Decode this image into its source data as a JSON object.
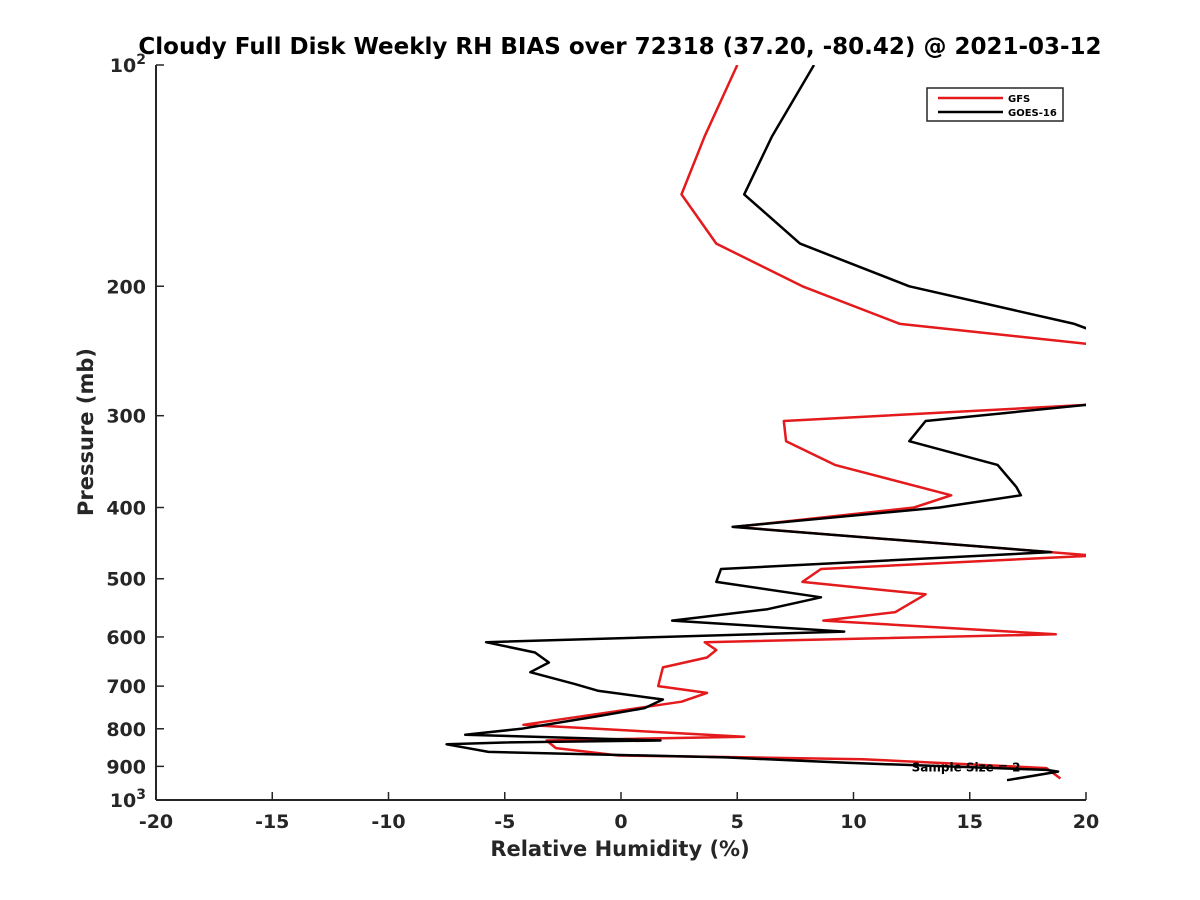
{
  "chart_data": {
    "type": "line",
    "title": "Cloudy Full Disk Weekly RH BIAS over 72318 (37.20, -80.42) @ 2021-03-12",
    "xlabel": "Relative Humidity (%)",
    "ylabel": "Pressure (mb)",
    "xlim": [
      -20,
      20
    ],
    "ylim": [
      100,
      1000
    ],
    "yscale": "log",
    "y_reversed": true,
    "grid": false,
    "legend_position": "top-right",
    "x_ticks": [
      -20,
      -15,
      -10,
      -5,
      0,
      5,
      10,
      15,
      20
    ],
    "x_tick_labels": [
      "-20",
      "-15",
      "-10",
      "-5",
      "0",
      "5",
      "10",
      "15",
      "20"
    ],
    "y_ticks": [
      {
        "value": 100,
        "base": "10",
        "exp": "2"
      },
      {
        "value": 200,
        "label": "200"
      },
      {
        "value": 300,
        "label": "300"
      },
      {
        "value": 400,
        "label": "400"
      },
      {
        "value": 500,
        "label": "500"
      },
      {
        "value": 600,
        "label": "600"
      },
      {
        "value": 700,
        "label": "700"
      },
      {
        "value": 800,
        "label": "800"
      },
      {
        "value": 900,
        "label": "900"
      },
      {
        "value": 1000,
        "base": "10",
        "exp": "3"
      }
    ],
    "annotation": "Sample Size = 2",
    "annotation_position": {
      "x": 12.5,
      "y": 900
    },
    "series": [
      {
        "name": "GFS",
        "color": "#e41a1c",
        "points": [
          [
            5.0,
            100
          ],
          [
            3.6,
            125
          ],
          [
            2.6,
            150
          ],
          [
            4.1,
            175
          ],
          [
            7.8,
            200
          ],
          [
            12.0,
            225
          ],
          [
            20.3,
            240
          ],
          [
            20.3,
            290
          ],
          [
            20.0,
            290
          ],
          [
            7.0,
            305
          ],
          [
            7.1,
            325
          ],
          [
            9.2,
            350
          ],
          [
            14.2,
            385
          ],
          [
            12.6,
            400
          ],
          [
            4.9,
            425
          ],
          [
            20.3,
            465
          ],
          [
            8.6,
            485
          ],
          [
            7.8,
            505
          ],
          [
            13.1,
            525
          ],
          [
            11.8,
            555
          ],
          [
            8.7,
            570
          ],
          [
            18.7,
            595
          ],
          [
            3.6,
            610
          ],
          [
            4.1,
            625
          ],
          [
            3.7,
            640
          ],
          [
            1.8,
            660
          ],
          [
            1.6,
            700
          ],
          [
            3.7,
            715
          ],
          [
            2.6,
            735
          ],
          [
            -4.2,
            790
          ],
          [
            5.3,
            820
          ],
          [
            -3.2,
            830
          ],
          [
            -2.8,
            850
          ],
          [
            -0.1,
            870
          ],
          [
            5.5,
            875
          ],
          [
            10.4,
            880
          ],
          [
            18.3,
            905
          ],
          [
            18.9,
            935
          ]
        ]
      },
      {
        "name": "GOES-16",
        "color": "#000000",
        "points": [
          [
            8.3,
            100
          ],
          [
            6.5,
            125
          ],
          [
            5.3,
            150
          ],
          [
            7.7,
            175
          ],
          [
            12.4,
            200
          ],
          [
            19.5,
            225
          ],
          [
            20.3,
            230
          ],
          [
            20.3,
            290
          ],
          [
            20.0,
            290
          ],
          [
            13.1,
            305
          ],
          [
            12.4,
            325
          ],
          [
            16.2,
            350
          ],
          [
            17.0,
            375
          ],
          [
            17.2,
            385
          ],
          [
            13.7,
            400
          ],
          [
            4.8,
            425
          ],
          [
            18.5,
            460
          ],
          [
            4.3,
            485
          ],
          [
            4.1,
            505
          ],
          [
            8.6,
            530
          ],
          [
            6.3,
            550
          ],
          [
            2.2,
            570
          ],
          [
            9.6,
            590
          ],
          [
            -5.8,
            610
          ],
          [
            -3.7,
            630
          ],
          [
            -3.1,
            650
          ],
          [
            -3.9,
            670
          ],
          [
            -2.0,
            695
          ],
          [
            -1.0,
            710
          ],
          [
            1.8,
            730
          ],
          [
            1.0,
            750
          ],
          [
            -1.1,
            770
          ],
          [
            -4.3,
            800
          ],
          [
            -6.7,
            815
          ],
          [
            1.7,
            830
          ],
          [
            -4.8,
            835
          ],
          [
            -7.5,
            840
          ],
          [
            -5.7,
            860
          ],
          [
            4.5,
            875
          ],
          [
            9.7,
            890
          ],
          [
            18.3,
            910
          ],
          [
            18.8,
            915
          ],
          [
            16.6,
            940
          ]
        ]
      }
    ]
  }
}
